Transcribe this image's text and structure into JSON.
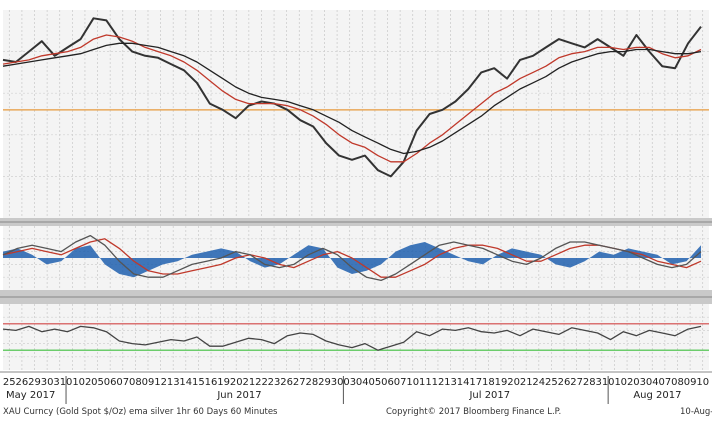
{
  "chart_data": {
    "type": "line",
    "x_tick_labels": [
      "25",
      "26",
      "29",
      "30",
      "31",
      "01",
      "02",
      "05",
      "06",
      "07",
      "08",
      "09",
      "12",
      "13",
      "14",
      "15",
      "16",
      "19",
      "20",
      "21",
      "22",
      "23",
      "26",
      "27",
      "28",
      "29",
      "30",
      "03",
      "04",
      "05",
      "06",
      "07",
      "10",
      "11",
      "12",
      "13",
      "14",
      "17",
      "18",
      "19",
      "20",
      "21",
      "24",
      "25",
      "26",
      "27",
      "28",
      "31",
      "01",
      "02",
      "03",
      "04",
      "07",
      "08",
      "09",
      "10"
    ],
    "month_labels": [
      "May 2017",
      "Jun 2017",
      "Jul 2017",
      "Aug 2017"
    ],
    "footer_left": "XAU Curncy (Gold Spot   $/Oz) ema silver 1hr 60 Days 60 Minutes",
    "footer_center": "Copyright© 2017 Bloomberg Finance L.P.",
    "footer_right": "10-Aug-2",
    "grid": true,
    "panels": [
      {
        "name": "price",
        "ylim": [
          0,
          100
        ],
        "series": [
          {
            "role": "price",
            "color": "#333333",
            "values": [
              76,
              75,
              80,
              85,
              78,
              82,
              86,
              96,
              95,
              86,
              80,
              78,
              77,
              74,
              71,
              65,
              55,
              52,
              48,
              54,
              56,
              55,
              52,
              47,
              44,
              36,
              30,
              28,
              30,
              23,
              20,
              27,
              42,
              50,
              52,
              56,
              62,
              70,
              72,
              67,
              76,
              78,
              82,
              86,
              84,
              82,
              86,
              82,
              78,
              88,
              80,
              73,
              72,
              84,
              92
            ]
          },
          {
            "role": "ema-fast",
            "color": "#c0392b",
            "values": [
              74,
              75,
              76,
              78,
              79,
              80,
              82,
              86,
              88,
              87,
              85,
              82,
              80,
              78,
              75,
              71,
              66,
              61,
              57,
              55,
              55,
              55,
              54,
              52,
              49,
              45,
              40,
              36,
              34,
              30,
              27,
              27,
              31,
              36,
              40,
              45,
              50,
              55,
              60,
              63,
              67,
              70,
              73,
              77,
              79,
              80,
              82,
              82,
              81,
              82,
              82,
              79,
              77,
              78,
              81
            ]
          },
          {
            "role": "ema-slow",
            "color": "#222222",
            "values": [
              73,
              74,
              75,
              76,
              77,
              78,
              79,
              81,
              83,
              84,
              84,
              83,
              82,
              80,
              78,
              75,
              71,
              67,
              63,
              60,
              58,
              57,
              56,
              54,
              52,
              49,
              46,
              42,
              39,
              36,
              33,
              31,
              32,
              34,
              37,
              41,
              45,
              49,
              54,
              58,
              62,
              65,
              68,
              72,
              75,
              77,
              79,
              80,
              80,
              81,
              81,
              80,
              79,
              79,
              80
            ]
          }
        ],
        "reference_lines": [
          {
            "value": 52,
            "color": "#e69a3c"
          }
        ]
      },
      {
        "name": "oscillator",
        "ylim": [
          -1,
          1
        ],
        "series": [
          {
            "role": "histogram",
            "color": "#1f5fae",
            "values": [
              0.2,
              0.3,
              0.1,
              -0.2,
              -0.1,
              0.3,
              0.4,
              -0.2,
              -0.5,
              -0.6,
              -0.4,
              -0.2,
              -0.1,
              0.1,
              0.2,
              0.3,
              0.2,
              -0.1,
              -0.3,
              -0.2,
              0.1,
              0.4,
              0.3,
              -0.3,
              -0.5,
              -0.4,
              -0.2,
              0.2,
              0.4,
              0.5,
              0.3,
              0.1,
              -0.1,
              -0.2,
              0.1,
              0.3,
              0.2,
              0.1,
              -0.2,
              -0.3,
              -0.1,
              0.2,
              0.1,
              0.3,
              0.2,
              0.1,
              -0.2,
              -0.1,
              0.4
            ]
          },
          {
            "role": "signal-line",
            "color": "#c0392b",
            "values": [
              0.1,
              0.2,
              0.3,
              0.2,
              0.1,
              0.3,
              0.5,
              0.6,
              0.3,
              -0.1,
              -0.4,
              -0.5,
              -0.5,
              -0.4,
              -0.3,
              -0.2,
              0.0,
              0.1,
              0.0,
              -0.2,
              -0.3,
              -0.1,
              0.1,
              0.2,
              0.0,
              -0.3,
              -0.6,
              -0.6,
              -0.4,
              -0.2,
              0.1,
              0.3,
              0.4,
              0.4,
              0.3,
              0.1,
              -0.1,
              -0.1,
              0.1,
              0.3,
              0.4,
              0.4,
              0.3,
              0.2,
              0.1,
              -0.1,
              -0.2,
              -0.3,
              -0.1
            ]
          },
          {
            "role": "fast-line",
            "color": "#555555",
            "values": [
              0.1,
              0.3,
              0.4,
              0.3,
              0.2,
              0.5,
              0.7,
              0.4,
              -0.1,
              -0.5,
              -0.6,
              -0.6,
              -0.4,
              -0.2,
              -0.1,
              0.0,
              0.2,
              0.1,
              -0.2,
              -0.3,
              -0.2,
              0.1,
              0.3,
              0.1,
              -0.3,
              -0.6,
              -0.7,
              -0.5,
              -0.2,
              0.1,
              0.4,
              0.5,
              0.4,
              0.3,
              0.1,
              -0.1,
              -0.2,
              0.0,
              0.3,
              0.5,
              0.5,
              0.4,
              0.3,
              0.2,
              0.0,
              -0.2,
              -0.3,
              -0.2,
              0.2
            ]
          }
        ]
      },
      {
        "name": "rsi",
        "ylim": [
          0,
          100
        ],
        "series": [
          {
            "role": "rsi",
            "color": "#444444",
            "values": [
              62,
              60,
              66,
              58,
              62,
              58,
              66,
              64,
              58,
              44,
              40,
              38,
              42,
              46,
              44,
              50,
              36,
              36,
              42,
              48,
              46,
              40,
              52,
              56,
              54,
              44,
              38,
              34,
              40,
              30,
              36,
              42,
              58,
              52,
              62,
              60,
              64,
              58,
              56,
              60,
              52,
              62,
              58,
              54,
              64,
              60,
              56,
              46,
              58,
              52,
              60,
              56,
              52,
              62,
              66
            ]
          }
        ],
        "reference_lines": [
          {
            "value": 70,
            "color": "#d24646"
          },
          {
            "value": 30,
            "color": "#3fbf3f"
          }
        ]
      }
    ]
  }
}
